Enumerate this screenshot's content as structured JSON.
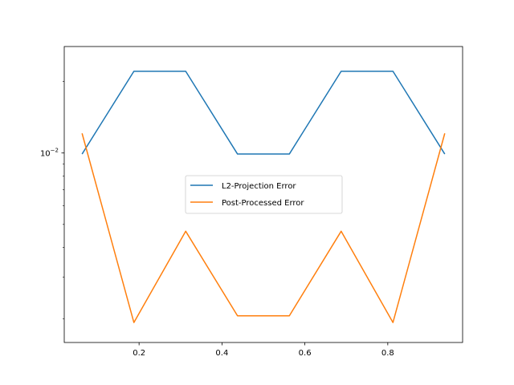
{
  "chart_data": {
    "type": "line",
    "title": "",
    "xlabel": "",
    "ylabel": "",
    "xlim": [
      0.0195,
      0.9805
    ],
    "ylim": [
      0.00159,
      0.0281
    ],
    "yscale": "log",
    "x_ticks": [
      {
        "value": 0.2,
        "label": "0.2"
      },
      {
        "value": 0.4,
        "label": "0.4"
      },
      {
        "value": 0.6,
        "label": "0.6"
      },
      {
        "value": 0.8,
        "label": "0.8"
      }
    ],
    "y_ticks": [
      {
        "value": 0.01,
        "label": "10",
        "exponent": "−2"
      }
    ],
    "grid": false,
    "legend_position": "center",
    "x": [
      0.0625,
      0.1875,
      0.3125,
      0.4375,
      0.5625,
      0.6875,
      0.8125,
      0.9375
    ],
    "series": [
      {
        "name": "L2-Projection Error",
        "color": "#1f77b4",
        "values": [
          0.0099,
          0.0221,
          0.0221,
          0.0099,
          0.0099,
          0.0221,
          0.0221,
          0.0099
        ]
      },
      {
        "name": "Post-Processed Error",
        "color": "#ff7f0e",
        "values": [
          0.0121,
          0.00193,
          0.00468,
          0.00206,
          0.00206,
          0.00468,
          0.00193,
          0.0121
        ]
      }
    ]
  }
}
